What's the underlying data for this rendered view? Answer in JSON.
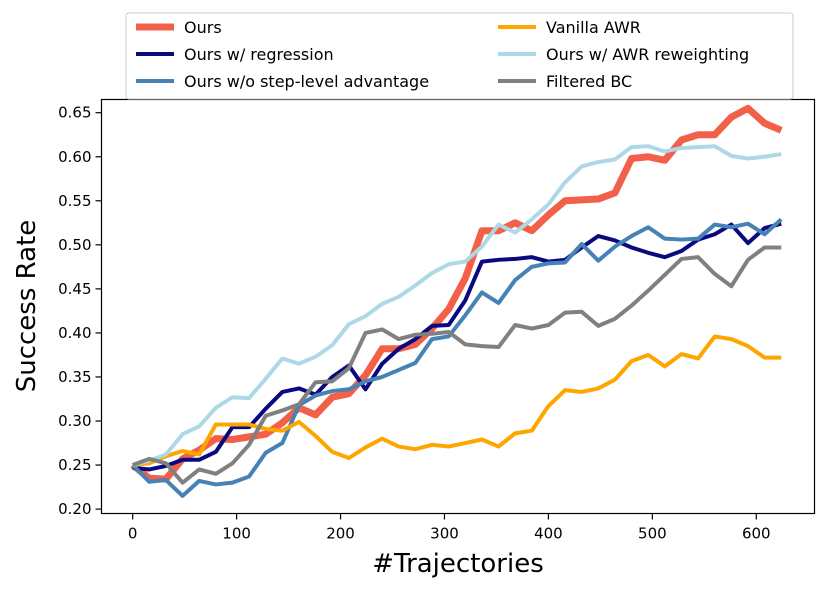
{
  "chart_data": {
    "type": "line",
    "title": "",
    "xlabel": "#Trajectories",
    "ylabel": "Success Rate",
    "xlim": [
      -30,
      656
    ],
    "ylim": [
      0.195,
      0.665
    ],
    "xticks": [
      0,
      100,
      200,
      300,
      400,
      500,
      600
    ],
    "yticks": [
      0.2,
      0.25,
      0.3,
      0.35,
      0.4,
      0.45,
      0.5,
      0.55,
      0.6,
      0.65
    ],
    "grid": false,
    "legend_position": "top",
    "x": [
      0,
      16,
      32,
      48,
      64,
      80,
      96,
      112,
      128,
      144,
      160,
      176,
      192,
      208,
      224,
      240,
      256,
      272,
      288,
      304,
      320,
      336,
      352,
      368,
      384,
      400,
      416,
      432,
      448,
      464,
      480,
      496,
      512,
      528,
      544,
      560,
      576,
      592,
      608,
      624
    ],
    "series": [
      {
        "name": "Ours",
        "color": "#F26049",
        "width": 7,
        "values": [
          0.25,
          0.235,
          0.234,
          0.257,
          0.267,
          0.28,
          0.279,
          0.282,
          0.285,
          0.298,
          0.315,
          0.307,
          0.327,
          0.331,
          0.352,
          0.382,
          0.382,
          0.387,
          0.405,
          0.427,
          0.462,
          0.516,
          0.516,
          0.525,
          0.516,
          0.534,
          0.55,
          0.551,
          0.552,
          0.559,
          0.598,
          0.6,
          0.596,
          0.619,
          0.625,
          0.625,
          0.645,
          0.655,
          0.638,
          0.63
        ]
      },
      {
        "name": "Ours w/ regression",
        "color": "#0A0A80",
        "width": 4,
        "values": [
          0.247,
          0.245,
          0.249,
          0.256,
          0.256,
          0.265,
          0.293,
          0.293,
          0.314,
          0.333,
          0.337,
          0.33,
          0.35,
          0.363,
          0.336,
          0.365,
          0.382,
          0.393,
          0.408,
          0.409,
          0.437,
          0.481,
          0.483,
          0.484,
          0.486,
          0.481,
          0.483,
          0.497,
          0.51,
          0.505,
          0.497,
          0.491,
          0.486,
          0.493,
          0.506,
          0.512,
          0.523,
          0.502,
          0.519,
          0.524
        ]
      },
      {
        "name": "Ours w/o step-level advantage",
        "color": "#4682B4",
        "width": 4,
        "values": [
          0.25,
          0.231,
          0.233,
          0.215,
          0.232,
          0.228,
          0.23,
          0.237,
          0.264,
          0.275,
          0.318,
          0.329,
          0.334,
          0.336,
          0.345,
          0.35,
          0.358,
          0.366,
          0.393,
          0.396,
          0.42,
          0.446,
          0.434,
          0.46,
          0.475,
          0.479,
          0.48,
          0.501,
          0.482,
          0.498,
          0.51,
          0.52,
          0.507,
          0.506,
          0.507,
          0.523,
          0.52,
          0.524,
          0.512,
          0.529
        ]
      },
      {
        "name": "Vanilla AWR",
        "color": "#FFA500",
        "width": 4,
        "values": [
          0.25,
          0.252,
          0.26,
          0.266,
          0.262,
          0.296,
          0.296,
          0.296,
          0.291,
          0.289,
          0.299,
          0.283,
          0.265,
          0.258,
          0.27,
          0.28,
          0.271,
          0.268,
          0.273,
          0.271,
          0.275,
          0.279,
          0.271,
          0.286,
          0.289,
          0.317,
          0.335,
          0.333,
          0.337,
          0.347,
          0.368,
          0.375,
          0.362,
          0.376,
          0.371,
          0.396,
          0.393,
          0.385,
          0.372,
          0.372
        ]
      },
      {
        "name": "Ours w/ AWR reweighting",
        "color": "#ADD8E6",
        "width": 4,
        "values": [
          0.25,
          0.255,
          0.262,
          0.285,
          0.294,
          0.315,
          0.327,
          0.326,
          0.348,
          0.371,
          0.365,
          0.373,
          0.386,
          0.41,
          0.419,
          0.433,
          0.441,
          0.454,
          0.468,
          0.478,
          0.481,
          0.498,
          0.523,
          0.514,
          0.529,
          0.546,
          0.571,
          0.589,
          0.594,
          0.597,
          0.611,
          0.612,
          0.606,
          0.61,
          0.611,
          0.612,
          0.601,
          0.598,
          0.6,
          0.603
        ]
      },
      {
        "name": "Filtered BC",
        "color": "#808080",
        "width": 4,
        "values": [
          0.25,
          0.257,
          0.252,
          0.23,
          0.245,
          0.24,
          0.252,
          0.273,
          0.306,
          0.312,
          0.319,
          0.344,
          0.345,
          0.36,
          0.4,
          0.404,
          0.393,
          0.398,
          0.399,
          0.401,
          0.387,
          0.385,
          0.384,
          0.409,
          0.405,
          0.409,
          0.423,
          0.424,
          0.408,
          0.416,
          0.431,
          0.448,
          0.466,
          0.484,
          0.486,
          0.467,
          0.453,
          0.483,
          0.497,
          0.497
        ]
      }
    ],
    "legend_columns": [
      [
        "Ours",
        "Ours w/ regression",
        "Ours w/o step-level advantage"
      ],
      [
        "Vanilla AWR",
        "Ours w/ AWR reweighting",
        "Filtered BC"
      ]
    ]
  }
}
